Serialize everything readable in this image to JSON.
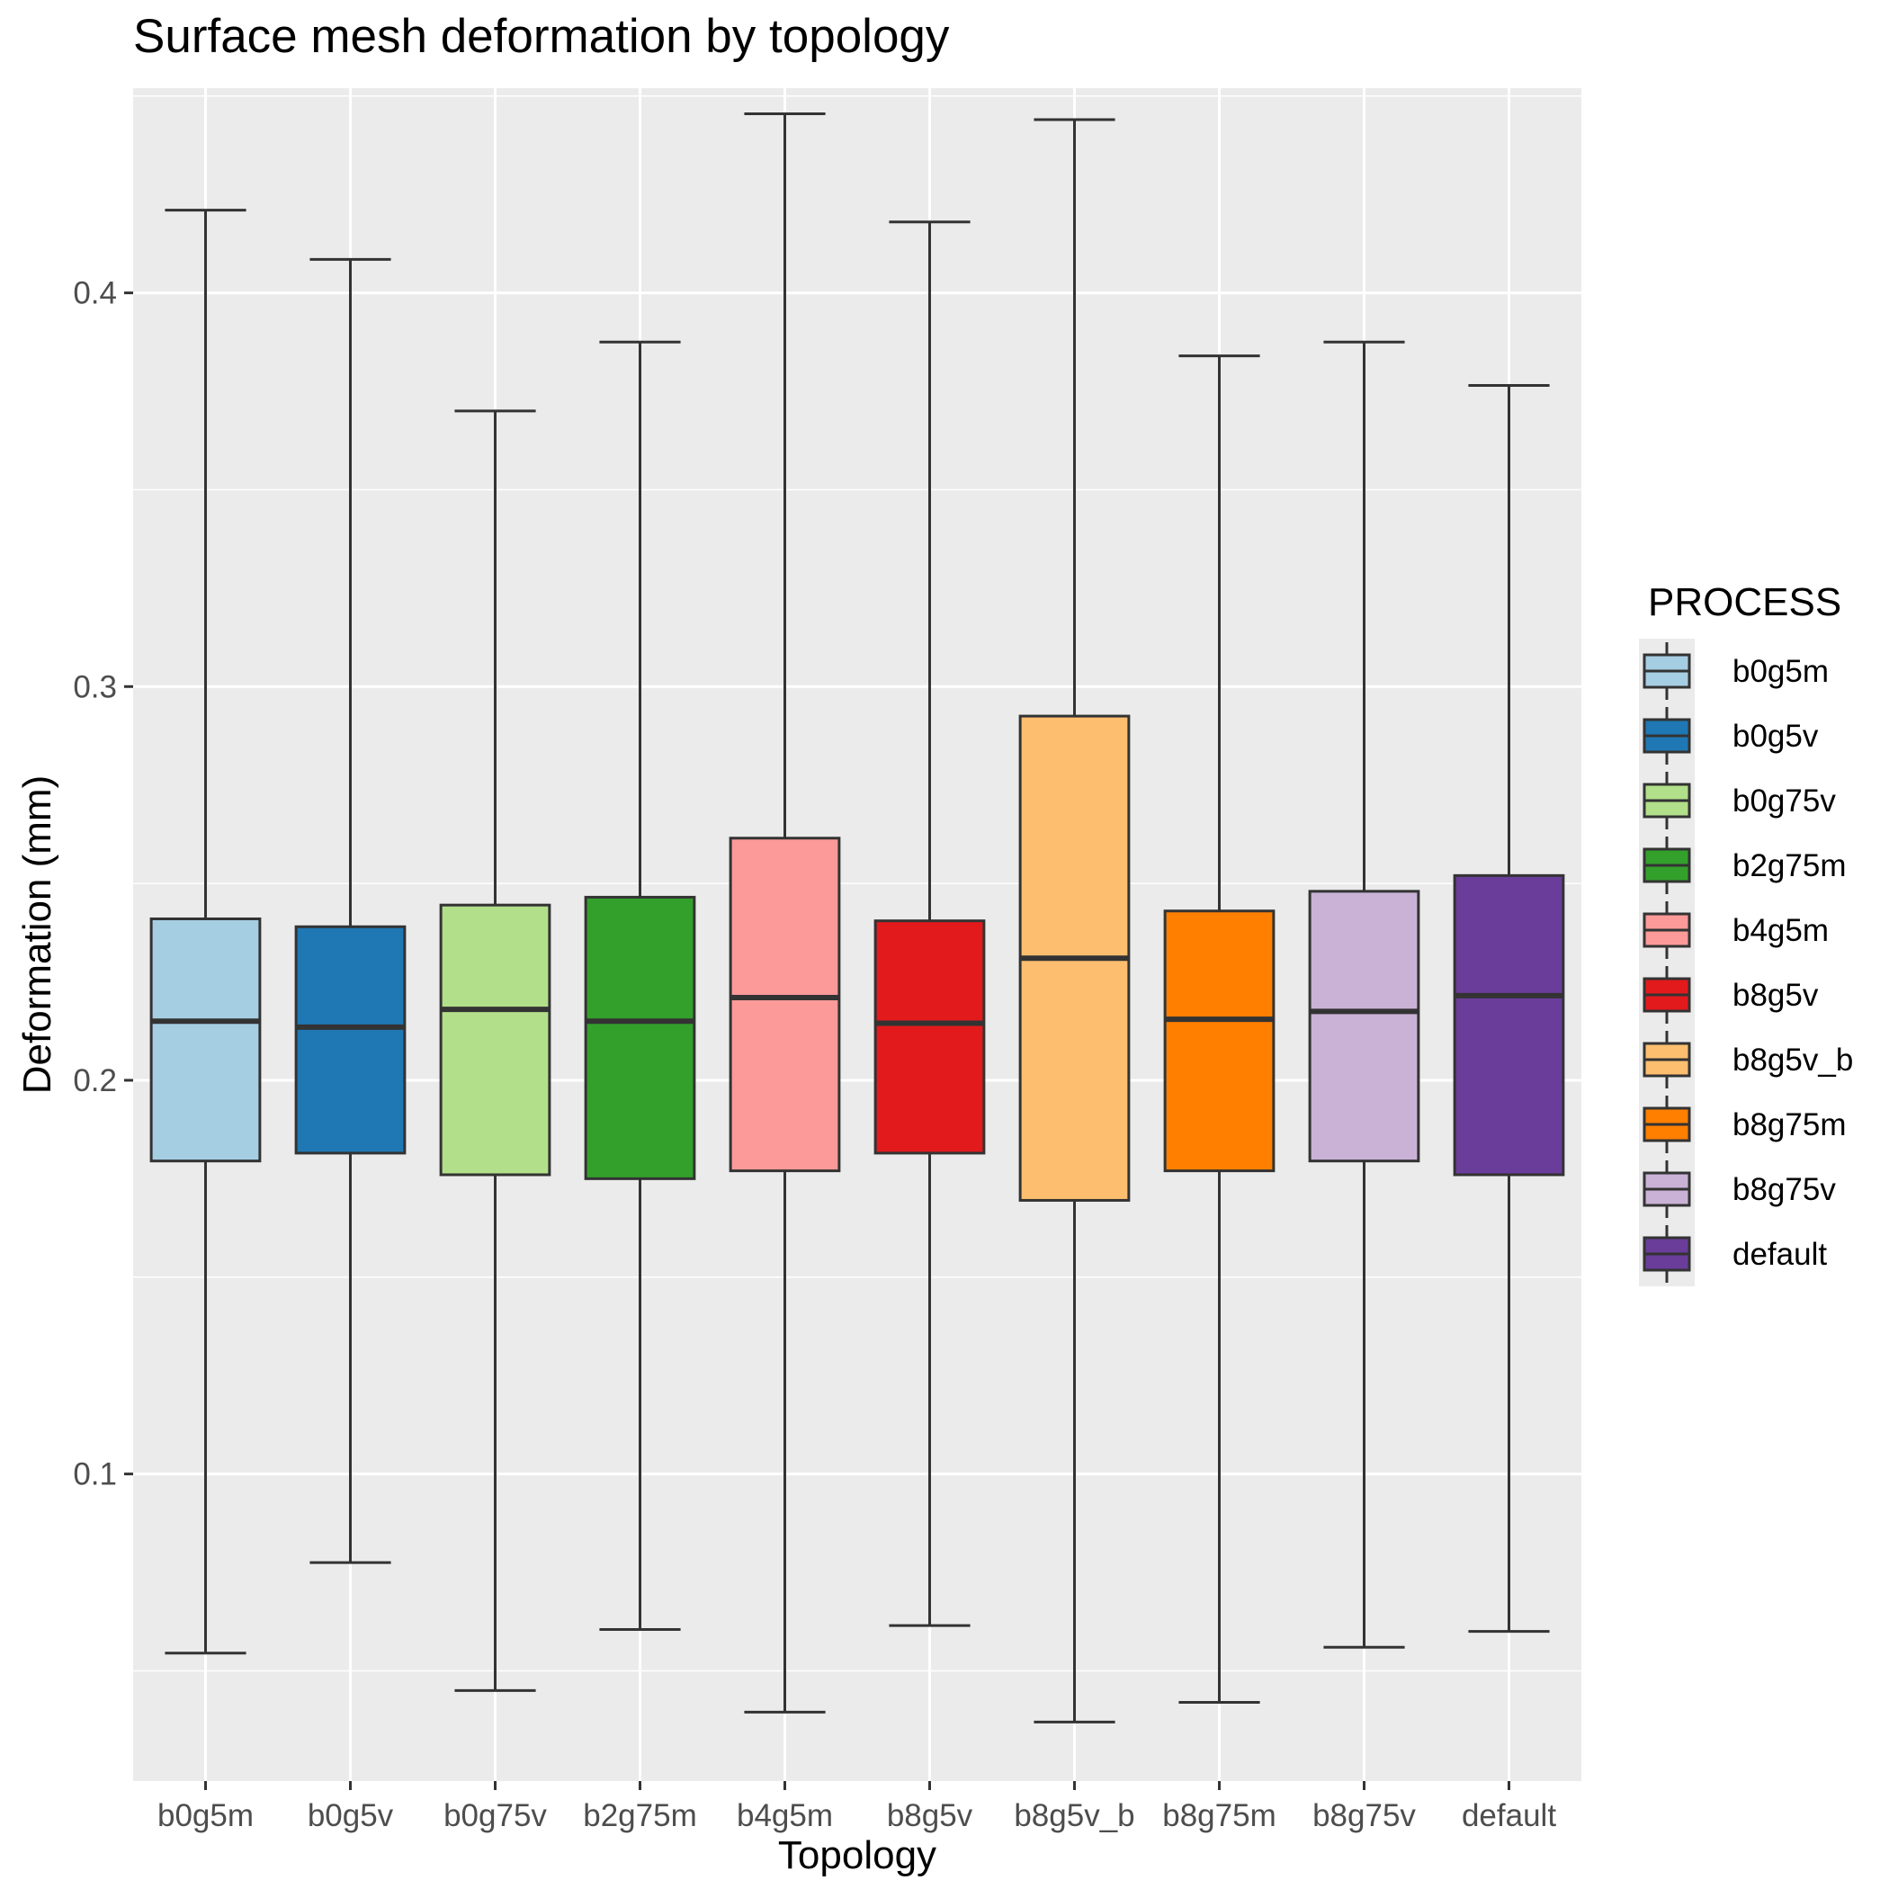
{
  "chart_data": {
    "type": "boxplot",
    "title": "Surface mesh deformation by topology",
    "xlabel": "Topology",
    "ylabel": "Deformation (mm)",
    "ylim": [
      0.022,
      0.452
    ],
    "yticks": [
      0.1,
      0.2,
      0.3,
      0.4
    ],
    "ytick_labels": [
      "0.1",
      "0.2",
      "0.3",
      "0.4"
    ],
    "categories": [
      "b0g5m",
      "b0g5v",
      "b0g75v",
      "b2g75m",
      "b4g5m",
      "b8g5v",
      "b8g5v_b",
      "b8g75m",
      "b8g75v",
      "default"
    ],
    "grid": true,
    "legend": {
      "title": "PROCESS",
      "position": "right",
      "entries": [
        "b0g5m",
        "b0g5v",
        "b0g75v",
        "b2g75m",
        "b4g5m",
        "b8g5v",
        "b8g5v_b",
        "b8g75m",
        "b8g75v",
        "default"
      ]
    },
    "series": [
      {
        "name": "b0g5m",
        "color": "#A6CEE3",
        "whisker_low": 0.0545,
        "q1": 0.1795,
        "median": 0.215,
        "q3": 0.241,
        "whisker_high": 0.421
      },
      {
        "name": "b0g5v",
        "color": "#1F78B4",
        "whisker_low": 0.0775,
        "q1": 0.1815,
        "median": 0.2135,
        "q3": 0.239,
        "whisker_high": 0.4085
      },
      {
        "name": "b0g75v",
        "color": "#B2DF8A",
        "whisker_low": 0.045,
        "q1": 0.176,
        "median": 0.218,
        "q3": 0.2445,
        "whisker_high": 0.37
      },
      {
        "name": "b2g75m",
        "color": "#33A02C",
        "whisker_low": 0.0605,
        "q1": 0.175,
        "median": 0.215,
        "q3": 0.2465,
        "whisker_high": 0.3875
      },
      {
        "name": "b4g5m",
        "color": "#FB9A99",
        "whisker_low": 0.0395,
        "q1": 0.177,
        "median": 0.221,
        "q3": 0.2615,
        "whisker_high": 0.4455
      },
      {
        "name": "b8g5v",
        "color": "#E31A1C",
        "whisker_low": 0.0615,
        "q1": 0.1815,
        "median": 0.2145,
        "q3": 0.2405,
        "whisker_high": 0.418
      },
      {
        "name": "b8g5v_b",
        "color": "#FDBF6F",
        "whisker_low": 0.037,
        "q1": 0.1695,
        "median": 0.231,
        "q3": 0.2925,
        "whisker_high": 0.444
      },
      {
        "name": "b8g75m",
        "color": "#FF7F00",
        "whisker_low": 0.042,
        "q1": 0.177,
        "median": 0.2155,
        "q3": 0.243,
        "whisker_high": 0.384
      },
      {
        "name": "b8g75v",
        "color": "#CAB2D6",
        "whisker_low": 0.056,
        "q1": 0.1795,
        "median": 0.2175,
        "q3": 0.248,
        "whisker_high": 0.3875
      },
      {
        "name": "default",
        "color": "#6A3D9A",
        "whisker_low": 0.06,
        "q1": 0.176,
        "median": 0.2215,
        "q3": 0.252,
        "whisker_high": 0.3765
      }
    ]
  }
}
